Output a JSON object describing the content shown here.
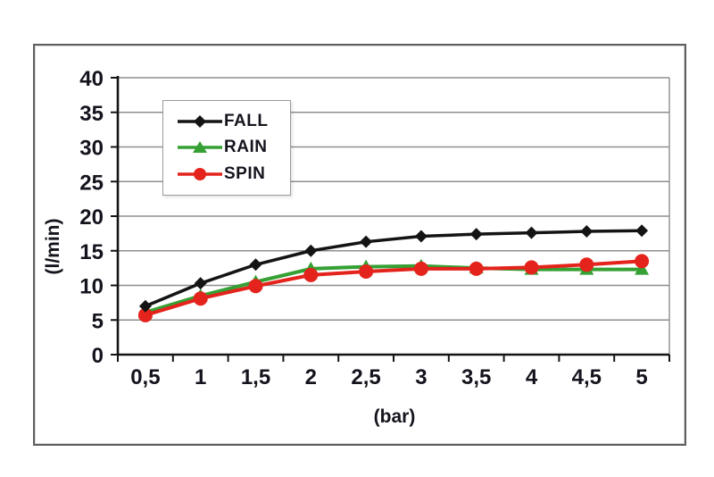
{
  "chart_data": {
    "type": "line",
    "x": [
      0.5,
      1,
      1.5,
      2,
      2.5,
      3,
      3.5,
      4,
      4.5,
      5
    ],
    "x_tick_labels": [
      "0,5",
      "1",
      "1,5",
      "2",
      "2,5",
      "3",
      "3,5",
      "4",
      "4,5",
      "5"
    ],
    "xlabel": "(bar)",
    "ylabel": "(l/min)",
    "ylim": [
      0,
      40
    ],
    "ytick_step": 5,
    "grid": true,
    "legend_position": "top-left-inside",
    "series": [
      {
        "name": "FALL",
        "color": "#141414",
        "marker": "diamond",
        "values": [
          7.0,
          10.3,
          13.0,
          15.0,
          16.3,
          17.1,
          17.4,
          17.6,
          17.8,
          17.9
        ]
      },
      {
        "name": "RAIN",
        "color": "#35a033",
        "marker": "triangle",
        "values": [
          6.1,
          8.5,
          10.5,
          12.4,
          12.7,
          12.8,
          12.5,
          12.3,
          12.3,
          12.3
        ]
      },
      {
        "name": "SPIN",
        "color": "#e4231c",
        "marker": "circle",
        "values": [
          5.7,
          8.1,
          9.9,
          11.5,
          12.0,
          12.4,
          12.4,
          12.6,
          13.0,
          13.5
        ]
      }
    ],
    "colors": {
      "axis": "#141414",
      "grid": "#8f8f8f",
      "tick_text": "#14141e"
    }
  }
}
